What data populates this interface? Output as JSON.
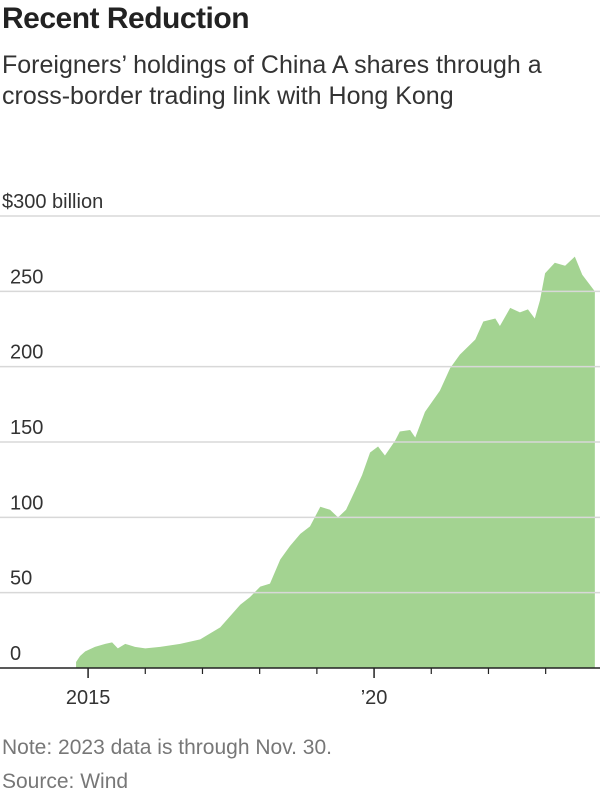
{
  "chart_data": {
    "type": "area",
    "title": "Recent Reduction",
    "subtitle": "Foreigners’ holdings of China A shares through a cross-border trading link with Hong Kong",
    "note": "Note: 2023 data is through Nov. 30.",
    "source": "Source: Wind",
    "color": "#a3d391",
    "grid": true,
    "x": [
      2014.79,
      2014.86,
      2014.95,
      2015.12,
      2015.3,
      2015.42,
      2015.52,
      2015.65,
      2015.82,
      2016.0,
      2016.26,
      2016.61,
      2016.96,
      2017.31,
      2017.66,
      2017.83,
      2018.01,
      2018.18,
      2018.36,
      2018.53,
      2018.71,
      2018.88,
      2019.06,
      2019.23,
      2019.37,
      2019.51,
      2019.67,
      2019.79,
      2019.93,
      2020.07,
      2020.19,
      2020.37,
      2020.45,
      2020.63,
      2020.72,
      2020.89,
      2021.15,
      2021.33,
      2021.5,
      2021.77,
      2021.91,
      2022.12,
      2022.2,
      2022.38,
      2022.55,
      2022.69,
      2022.81,
      2022.9,
      2022.99,
      2023.16,
      2023.34,
      2023.51,
      2023.64,
      2023.86
    ],
    "values": [
      4,
      8,
      11,
      14,
      16,
      17,
      13,
      16,
      14,
      13,
      14,
      16,
      19,
      27,
      42,
      47,
      54,
      56,
      72,
      81,
      89,
      94,
      107,
      105,
      100,
      105,
      118,
      128,
      143,
      147,
      141,
      151,
      157,
      158,
      153,
      170,
      184,
      199,
      208,
      218,
      230,
      232,
      227,
      239,
      236,
      238,
      232,
      244,
      262,
      269,
      267,
      273,
      261,
      250
    ],
    "xlim": [
      2013.46,
      2023.95
    ],
    "xticks": [
      2015,
      {
        "value": 2020,
        "label": "’20"
      }
    ],
    "xminorticks": [
      2016,
      2017,
      2018,
      2019,
      2021,
      2022,
      2023
    ],
    "ylim": [
      0,
      300
    ],
    "yticks": [
      0,
      50,
      100,
      150,
      200,
      250,
      {
        "value": 300,
        "label": "$300 billion"
      }
    ]
  }
}
